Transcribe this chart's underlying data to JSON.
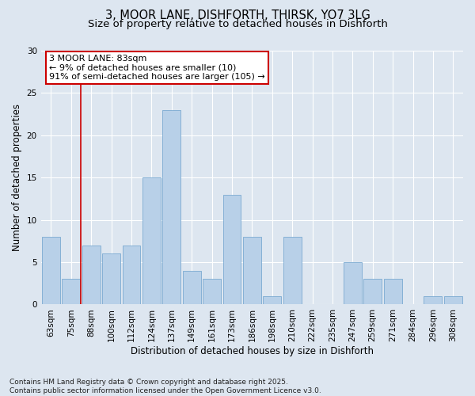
{
  "title_line1": "3, MOOR LANE, DISHFORTH, THIRSK, YO7 3LG",
  "title_line2": "Size of property relative to detached houses in Dishforth",
  "xlabel": "Distribution of detached houses by size in Dishforth",
  "ylabel": "Number of detached properties",
  "categories": [
    "63sqm",
    "75sqm",
    "88sqm",
    "100sqm",
    "112sqm",
    "124sqm",
    "137sqm",
    "149sqm",
    "161sqm",
    "173sqm",
    "186sqm",
    "198sqm",
    "210sqm",
    "222sqm",
    "235sqm",
    "247sqm",
    "259sqm",
    "271sqm",
    "284sqm",
    "296sqm",
    "308sqm"
  ],
  "values": [
    8,
    3,
    7,
    6,
    7,
    15,
    23,
    4,
    3,
    13,
    8,
    1,
    8,
    0,
    0,
    5,
    3,
    3,
    0,
    1,
    1
  ],
  "bar_color": "#b8d0e8",
  "bar_edge_color": "#6aa0cc",
  "vline_x_index": 1,
  "vline_color": "#cc0000",
  "annotation_text": "3 MOOR LANE: 83sqm\n← 9% of detached houses are smaller (10)\n91% of semi-detached houses are larger (105) →",
  "annotation_box_color": "white",
  "annotation_box_edge": "#cc0000",
  "ylim": [
    0,
    30
  ],
  "yticks": [
    0,
    5,
    10,
    15,
    20,
    25,
    30
  ],
  "background_color": "#dde6f0",
  "plot_background": "#dde6f0",
  "footer_line1": "Contains HM Land Registry data © Crown copyright and database right 2025.",
  "footer_line2": "Contains public sector information licensed under the Open Government Licence v3.0.",
  "title_fontsize": 10.5,
  "subtitle_fontsize": 9.5,
  "axis_label_fontsize": 8.5,
  "tick_fontsize": 7.5,
  "annotation_fontsize": 8,
  "footer_fontsize": 6.5
}
